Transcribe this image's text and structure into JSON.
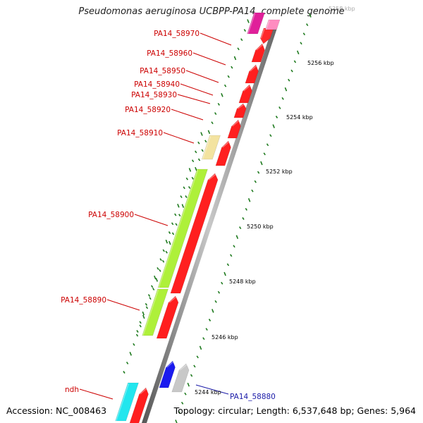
{
  "title": "Pseudomonas aeruginosa UCBPP-PA14, complete genome",
  "footer": {
    "accession": "Accession: NC_008463",
    "topology": "Topology: circular; Length: 6,537,648 bp; Genes: 5,964"
  },
  "colors": {
    "backbone": "#8a8a8a",
    "label_red": "#cc0000",
    "label_blue": "#1a1aa8",
    "tick_green": "#1e7a1e"
  },
  "kbp_ticks": [
    "5244 kbp",
    "5246 kbp",
    "5248 kbp",
    "5250 kbp",
    "5252 kbp",
    "5254 kbp",
    "5256 kbp",
    "5258 kbp"
  ],
  "gene_labels": [
    {
      "name": "PA14_58970",
      "color": "red"
    },
    {
      "name": "PA14_58960",
      "color": "red"
    },
    {
      "name": "PA14_58950",
      "color": "red"
    },
    {
      "name": "PA14_58940",
      "color": "red"
    },
    {
      "name": "PA14_58930",
      "color": "red"
    },
    {
      "name": "PA14_58920",
      "color": "red"
    },
    {
      "name": "PA14_58910",
      "color": "red"
    },
    {
      "name": "PA14_58900",
      "color": "red"
    },
    {
      "name": "PA14_58890",
      "color": "red"
    },
    {
      "name": "ndh",
      "color": "red"
    },
    {
      "name": "PA14_58880",
      "color": "blue"
    }
  ]
}
